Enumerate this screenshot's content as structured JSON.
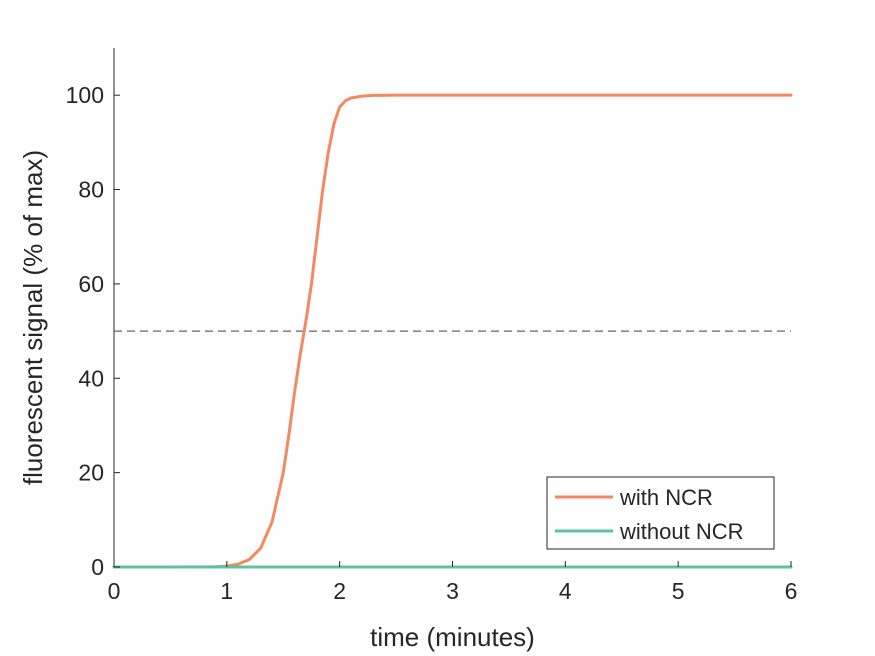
{
  "chart_data": {
    "type": "line",
    "xlabel": "time (minutes)",
    "ylabel": "fluorescent signal (% of max)",
    "xlim": [
      0,
      6
    ],
    "ylim": [
      0,
      110
    ],
    "x_ticks": [
      0,
      1,
      2,
      3,
      4,
      5,
      6
    ],
    "y_ticks": [
      0,
      20,
      40,
      60,
      80,
      100
    ],
    "grid": false,
    "legend_position": "bottom-right",
    "reference_line": {
      "y": 50,
      "style": "dashed",
      "color": "#666666"
    },
    "series": [
      {
        "name": "with NCR",
        "color": "#F4895F",
        "x": [
          0,
          0.5,
          0.9,
          1.0,
          1.1,
          1.2,
          1.3,
          1.4,
          1.5,
          1.55,
          1.6,
          1.65,
          1.7,
          1.75,
          1.8,
          1.85,
          1.9,
          1.95,
          2.0,
          2.05,
          2.1,
          2.2,
          2.3,
          2.5,
          3.0,
          4.0,
          5.0,
          6.0
        ],
        "y": [
          0,
          0,
          0.05,
          0.2,
          0.6,
          1.6,
          4.0,
          9.5,
          20,
          28,
          37,
          45,
          52,
          60,
          70,
          80,
          88,
          94,
          97.5,
          98.8,
          99.4,
          99.8,
          99.95,
          100,
          100,
          100,
          100,
          100
        ]
      },
      {
        "name": "without NCR",
        "color": "#5DC3A0",
        "x": [
          0,
          6
        ],
        "y": [
          0,
          0
        ]
      }
    ]
  }
}
